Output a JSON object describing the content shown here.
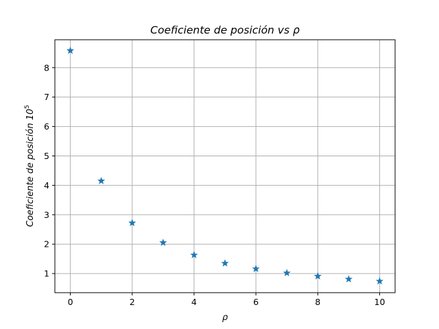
{
  "chart_data": {
    "type": "scatter",
    "title": "Coeficiente de posición vs ρ",
    "xlabel": "ρ",
    "ylabel": "Coeficiente de posición 10",
    "ylabel_exponent": "5",
    "marker": "star",
    "color": "#1f77b4",
    "grid": true,
    "xlim": [
      -0.5,
      10.5
    ],
    "ylim": [
      0.35,
      8.95
    ],
    "xticks": [
      0,
      2,
      4,
      6,
      8,
      10
    ],
    "yticks": [
      1,
      2,
      3,
      4,
      5,
      6,
      7,
      8
    ],
    "x": [
      0,
      1,
      2,
      3,
      4,
      5,
      6,
      7,
      8,
      9,
      10
    ],
    "y": [
      8.58,
      4.15,
      2.72,
      2.05,
      1.63,
      1.35,
      1.16,
      1.02,
      0.91,
      0.81,
      0.74
    ]
  }
}
